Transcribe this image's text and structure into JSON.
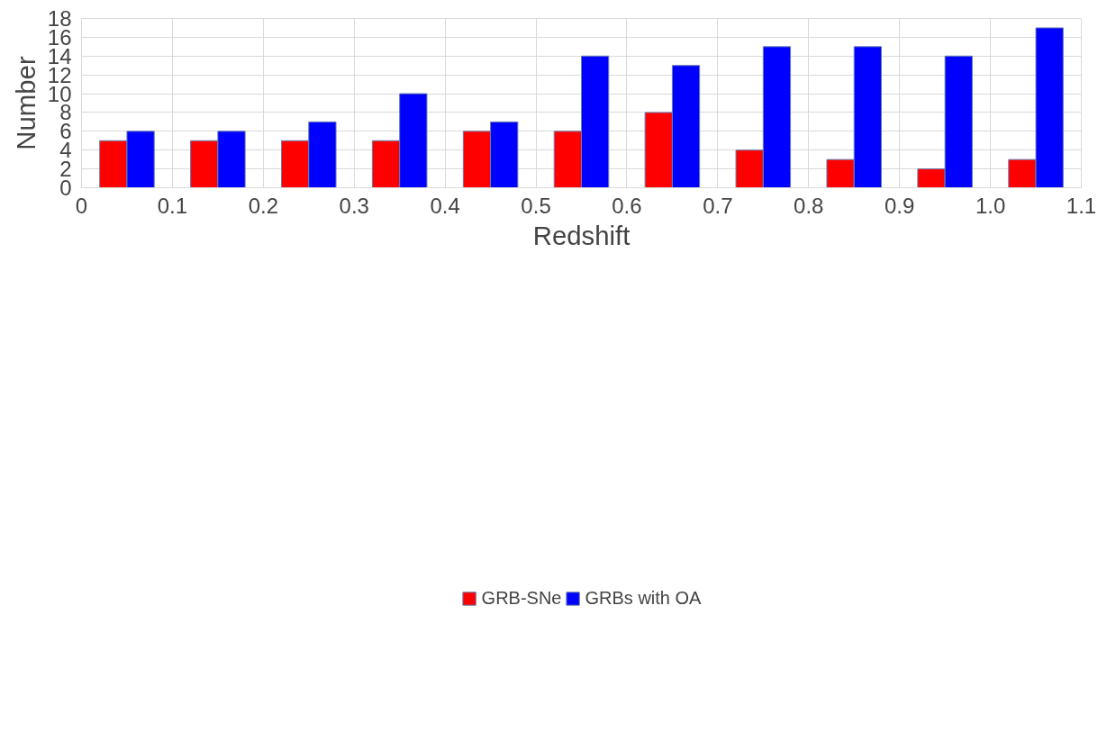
{
  "chart_data": {
    "type": "bar",
    "xlabel": "Redshift",
    "ylabel": "Number",
    "x": [
      0.05,
      0.15,
      0.25,
      0.35,
      0.45,
      0.55,
      0.65,
      0.75,
      0.85,
      0.95,
      1.05
    ],
    "series": [
      {
        "name": "GRB-SNe",
        "color": "#ff0000",
        "values": [
          5,
          5,
          5,
          5,
          6,
          6,
          8,
          4,
          3,
          2,
          3
        ]
      },
      {
        "name": "GRBs with OA",
        "color": "#0000ff",
        "values": [
          6,
          6,
          7,
          10,
          7,
          14,
          13,
          15,
          15,
          14,
          17
        ]
      }
    ],
    "xlim": [
      0,
      1.1
    ],
    "xticks": [
      0,
      0.1,
      0.2,
      0.3,
      0.4,
      0.5,
      0.6,
      0.7,
      0.8,
      0.9,
      {
        "value": 1.0,
        "label": "1.0"
      },
      1.1
    ],
    "ylim": [
      0,
      18
    ],
    "yticks": [
      0,
      2,
      4,
      6,
      8,
      10,
      12,
      14,
      16,
      18
    ],
    "grid": true,
    "legend": "bottom"
  }
}
